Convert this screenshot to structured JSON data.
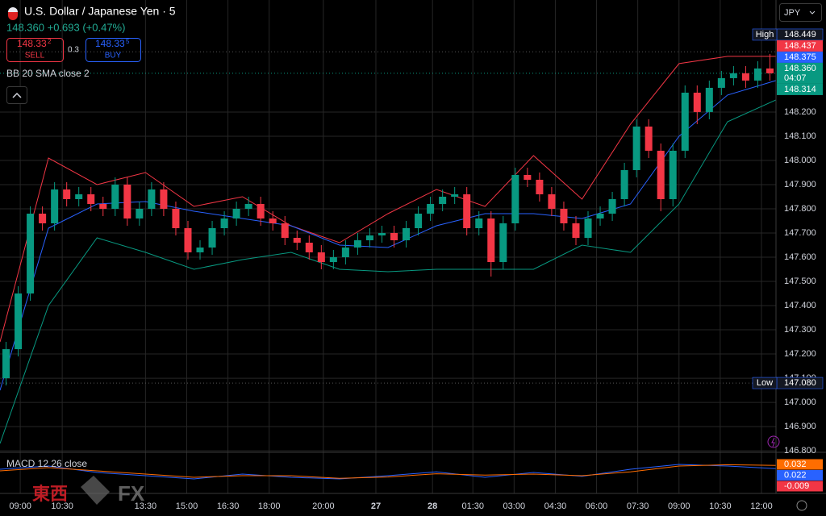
{
  "header": {
    "title": "U.S. Dollar / Japanese Yen · 5",
    "quote": "148.360 +0.693 (+0.47%)",
    "sell_price": "148.33",
    "sell_sup": "2",
    "sell": "SELL",
    "spread": "0.3",
    "buy_price": "148.33",
    "buy_sup": "5",
    "buy": "BUY",
    "indicator": "BB 20 SMA close 2",
    "currency": "JPY",
    "macd_title": "MACD 12 26 close"
  },
  "watermark": {
    "left": "東西",
    "right": "FX"
  },
  "chart_data": {
    "type": "candlestick",
    "xlim": [
      0,
      64
    ],
    "ylim": [
      146.797,
      148.663
    ],
    "grid": true,
    "up_color": "#089981",
    "down_color": "#f23645",
    "xticks": [
      {
        "value": 1.67,
        "label": "09:00"
      },
      {
        "value": 5.13,
        "label": "10:30"
      },
      {
        "value": 12,
        "label": "13:30"
      },
      {
        "value": 15.4,
        "label": "15:00"
      },
      {
        "value": 18.8,
        "label": "16:30"
      },
      {
        "value": 22.2,
        "label": "18:00"
      },
      {
        "value": 26.67,
        "label": "20:00"
      },
      {
        "value": 31,
        "label": "27"
      },
      {
        "value": 35.67,
        "label": "28"
      },
      {
        "value": 39,
        "label": "01:30"
      },
      {
        "value": 42.4,
        "label": "03:00"
      },
      {
        "value": 45.8,
        "label": "04:30"
      },
      {
        "value": 49.2,
        "label": "06:00"
      },
      {
        "value": 52.6,
        "label": "07:30"
      },
      {
        "value": 56,
        "label": "09:00"
      },
      {
        "value": 59.4,
        "label": "10:30"
      },
      {
        "value": 62.8,
        "label": "12:00"
      }
    ],
    "yticks": [
      {
        "value": 148.2,
        "label": "148.200"
      },
      {
        "value": 148.1,
        "label": "148.100"
      },
      {
        "value": 148.0,
        "label": "148.000"
      },
      {
        "value": 147.9,
        "label": "147.900"
      },
      {
        "value": 147.8,
        "label": "147.800"
      },
      {
        "value": 147.7,
        "label": "147.700"
      },
      {
        "value": 147.6,
        "label": "147.600"
      },
      {
        "value": 147.5,
        "label": "147.500"
      },
      {
        "value": 147.4,
        "label": "147.400"
      },
      {
        "value": 147.3,
        "label": "147.300"
      },
      {
        "value": 147.2,
        "label": "147.200"
      },
      {
        "value": 147.1,
        "label": "147.100"
      },
      {
        "value": 147.0,
        "label": "147.000"
      },
      {
        "value": 146.9,
        "label": "146.900"
      },
      {
        "value": 146.8,
        "label": "146.800"
      }
    ],
    "open": [
      147.1,
      147.22,
      147.45,
      147.78,
      147.74,
      147.88,
      147.84,
      147.86,
      147.82,
      147.8,
      147.9,
      147.76,
      147.8,
      147.88,
      147.8,
      147.72,
      147.62,
      147.64,
      147.72,
      147.76,
      147.8,
      147.82,
      147.76,
      147.74,
      147.68,
      147.66,
      147.62,
      147.58,
      147.6,
      147.64,
      147.67,
      147.69,
      147.7,
      147.67,
      147.72,
      147.78,
      147.82,
      147.85,
      147.86,
      147.72,
      147.76,
      147.58,
      147.74,
      147.94,
      147.92,
      147.86,
      147.8,
      147.74,
      147.68,
      147.76,
      147.78,
      147.84,
      147.96,
      148.14,
      148.04,
      147.84,
      148.04,
      148.28,
      148.2,
      148.3,
      148.34,
      148.36,
      148.33,
      148.38
    ],
    "high": [
      147.25,
      147.48,
      147.81,
      147.81,
      147.91,
      147.91,
      147.89,
      147.89,
      147.85,
      147.93,
      147.93,
      147.83,
      147.91,
      147.91,
      147.83,
      147.75,
      147.67,
      147.75,
      147.79,
      147.83,
      147.85,
      147.85,
      147.79,
      147.77,
      147.71,
      147.69,
      147.65,
      147.63,
      147.67,
      147.7,
      147.72,
      147.73,
      147.73,
      147.75,
      147.81,
      147.85,
      147.88,
      147.89,
      147.89,
      147.79,
      147.79,
      147.77,
      147.97,
      147.97,
      147.95,
      147.89,
      147.83,
      147.77,
      147.79,
      147.81,
      147.87,
      147.99,
      148.17,
      148.17,
      148.07,
      148.07,
      148.31,
      148.31,
      148.33,
      148.37,
      148.39,
      148.39,
      148.41,
      148.44
    ],
    "low": [
      147.07,
      147.19,
      147.42,
      147.71,
      147.71,
      147.81,
      147.81,
      147.79,
      147.77,
      147.77,
      147.73,
      147.73,
      147.77,
      147.77,
      147.69,
      147.59,
      147.59,
      147.61,
      147.69,
      147.73,
      147.77,
      147.73,
      147.71,
      147.65,
      147.63,
      147.59,
      147.55,
      147.55,
      147.57,
      147.61,
      147.64,
      147.66,
      147.64,
      147.64,
      147.69,
      147.75,
      147.79,
      147.82,
      147.69,
      147.69,
      147.52,
      147.55,
      147.71,
      147.89,
      147.83,
      147.77,
      147.71,
      147.65,
      147.65,
      147.73,
      147.75,
      147.81,
      147.93,
      148.01,
      147.79,
      147.81,
      148.01,
      148.15,
      148.17,
      148.27,
      148.31,
      148.3,
      148.3,
      148.33
    ],
    "close": [
      147.22,
      147.45,
      147.78,
      147.74,
      147.88,
      147.84,
      147.86,
      147.82,
      147.8,
      147.9,
      147.76,
      147.8,
      147.88,
      147.8,
      147.72,
      147.62,
      147.64,
      147.72,
      147.76,
      147.8,
      147.82,
      147.76,
      147.74,
      147.68,
      147.66,
      147.62,
      147.58,
      147.6,
      147.64,
      147.67,
      147.69,
      147.7,
      147.67,
      147.72,
      147.78,
      147.82,
      147.85,
      147.86,
      147.72,
      147.76,
      147.58,
      147.74,
      147.94,
      147.92,
      147.86,
      147.8,
      147.74,
      147.68,
      147.76,
      147.78,
      147.84,
      147.96,
      148.14,
      148.04,
      147.84,
      148.04,
      148.28,
      148.2,
      148.3,
      148.34,
      148.36,
      148.33,
      148.38,
      148.36
    ],
    "bands": {
      "x": [
        0,
        4,
        8,
        12,
        16,
        20,
        24,
        28,
        32,
        36,
        40,
        44,
        48,
        52,
        56,
        60,
        64
      ],
      "series": [
        {
          "color": "#f23645",
          "values": [
            147.25,
            148.01,
            147.9,
            147.95,
            147.81,
            147.85,
            147.73,
            147.66,
            147.78,
            147.88,
            147.81,
            148.02,
            147.84,
            148.15,
            148.4,
            148.43,
            148.43
          ]
        },
        {
          "color": "#2962ff",
          "values": [
            147.05,
            147.72,
            147.82,
            147.83,
            147.79,
            147.76,
            147.73,
            147.65,
            147.64,
            147.73,
            147.78,
            147.78,
            147.76,
            147.82,
            148.1,
            148.27,
            148.33
          ]
        },
        {
          "color": "#089981",
          "values": [
            146.83,
            147.4,
            147.68,
            147.62,
            147.55,
            147.59,
            147.62,
            147.55,
            147.54,
            147.55,
            147.55,
            147.55,
            147.65,
            147.62,
            147.82,
            148.16,
            148.25
          ]
        }
      ]
    },
    "price_labels": [
      {
        "tag": "High",
        "value": 148.449,
        "label": "148.449",
        "color": "#131722"
      },
      {
        "value": 148.437,
        "label": "148.437",
        "color": "#f23645"
      },
      {
        "value": 148.375,
        "label": "148.375",
        "color": "#2962ff"
      },
      {
        "value": 148.36,
        "label": "148.360",
        "sub": "04:07",
        "color": "#089981",
        "main": true
      },
      {
        "value": 148.314,
        "label": "148.314",
        "color": "#089981"
      },
      {
        "tag": "Low",
        "value": 147.08,
        "label": "147.080",
        "color": "#131722"
      }
    ],
    "macd": {
      "ylim": [
        -0.05,
        0.06
      ],
      "x": [
        0,
        4,
        8,
        12,
        16,
        20,
        24,
        28,
        32,
        36,
        40,
        44,
        48,
        52,
        56,
        60,
        64
      ],
      "series": [
        {
          "color": "#2962ff",
          "values": [
            0.02,
            0.03,
            0.01,
            0.0,
            -0.01,
            0.005,
            -0.005,
            -0.01,
            0.0,
            0.012,
            -0.005,
            0.01,
            -0.002,
            0.02,
            0.035,
            0.03,
            0.022
          ]
        },
        {
          "color": "#ff6d00",
          "values": [
            0.015,
            0.025,
            0.015,
            0.005,
            -0.005,
            0.0,
            0.0,
            -0.008,
            -0.004,
            0.006,
            0.002,
            0.005,
            0.0,
            0.012,
            0.03,
            0.034,
            0.032
          ]
        }
      ],
      "labels": [
        {
          "value": 0.032,
          "label": "0.032",
          "color": "#ff6d00"
        },
        {
          "value": 0.022,
          "label": "0.022",
          "color": "#2962ff"
        },
        {
          "value": -0.009,
          "label": "-0.009",
          "color": "#f23645"
        }
      ]
    }
  }
}
